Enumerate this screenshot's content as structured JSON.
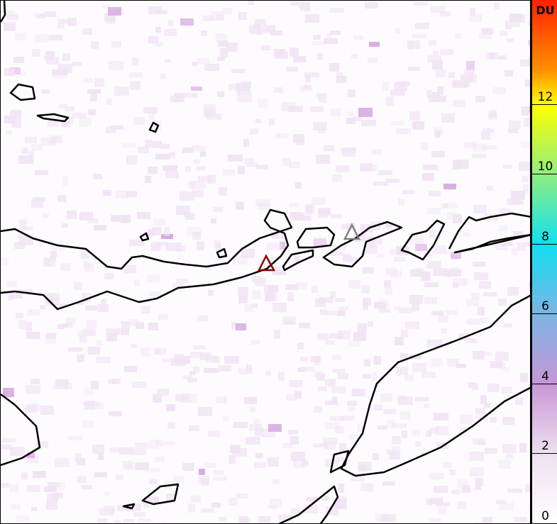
{
  "colorbar": {
    "unit": "DU",
    "range": [
      0,
      15
    ],
    "ticks": [
      "0",
      "2",
      "4",
      "6",
      "8",
      "10",
      "12"
    ],
    "stops": [
      {
        "value": 0,
        "color": "#ffffff"
      },
      {
        "value": 2,
        "color": "#eee0f0"
      },
      {
        "value": 4,
        "color": "#c896d6"
      },
      {
        "value": 6,
        "color": "#7db4e4"
      },
      {
        "value": 8,
        "color": "#10e0f0"
      },
      {
        "value": 10,
        "color": "#90ee80"
      },
      {
        "value": 12,
        "color": "#ffff00"
      },
      {
        "value": 13,
        "color": "#ff9000"
      },
      {
        "value": 15,
        "color": "#ff2000"
      }
    ]
  },
  "markers": [
    {
      "type": "volcano-triangle",
      "color": "#8b0000"
    },
    {
      "type": "volcano-triangle",
      "color": "#808080"
    }
  ]
}
